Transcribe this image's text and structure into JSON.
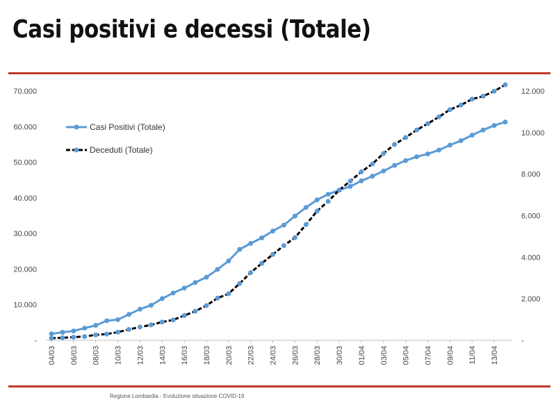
{
  "slide": {
    "title": "Casi positivi e decessi (Totale)",
    "footer": "Regione Lombardia - Evoluzione situazione COVID-19"
  },
  "colors": {
    "accent_rule": "#c0392b",
    "series_positivi": "#5b9bd5",
    "series_deceduti_line": "#000000",
    "series_deceduti_marker": "#5b9bd5"
  },
  "chart_data": {
    "type": "line",
    "title": "",
    "grid": false,
    "legend_position": "top-left",
    "left_axis": {
      "range": [
        0,
        70000
      ],
      "ticks": [
        "-",
        "10.000",
        "20.000",
        "30.000",
        "40.000",
        "50.000",
        "60.000",
        "70.000"
      ]
    },
    "right_axis": {
      "range": [
        0,
        12000
      ],
      "ticks": [
        "-",
        "2.000",
        "4.000",
        "6.000",
        "8.000",
        "10.000",
        "12.000"
      ]
    },
    "x_tick_labels": [
      "04/03",
      "06/03",
      "08/03",
      "10/03",
      "12/03",
      "14/03",
      "16/03",
      "18/03",
      "20/03",
      "22/03",
      "24/03",
      "26/03",
      "28/03",
      "30/03",
      "01/04",
      "03/04",
      "05/04",
      "07/04",
      "09/04",
      "11/04",
      "13/04"
    ],
    "categories": [
      "04/03",
      "05/03",
      "06/03",
      "07/03",
      "08/03",
      "09/03",
      "10/03",
      "11/03",
      "12/03",
      "13/03",
      "14/03",
      "15/03",
      "16/03",
      "17/03",
      "18/03",
      "19/03",
      "20/03",
      "21/03",
      "22/03",
      "23/03",
      "24/03",
      "25/03",
      "26/03",
      "27/03",
      "28/03",
      "29/03",
      "30/03",
      "31/03",
      "01/04",
      "02/04",
      "03/04",
      "04/04",
      "05/04",
      "06/04",
      "07/04",
      "08/04",
      "09/04",
      "10/04",
      "11/04",
      "12/04",
      "13/04",
      "14/04"
    ],
    "series": [
      {
        "name": "Casi Positivi (Totale)",
        "axis": "left",
        "values": [
          1820,
          2250,
          2610,
          3420,
          4190,
          5470,
          5790,
          7280,
          8730,
          9820,
          11690,
          13270,
          14650,
          16220,
          17710,
          19880,
          22260,
          25520,
          27210,
          28760,
          30700,
          32350,
          34890,
          37300,
          39420,
          41010,
          42160,
          43210,
          44770,
          46070,
          47520,
          49120,
          50450,
          51530,
          52330,
          53410,
          54800,
          56050,
          57590,
          59050,
          60310,
          61290
        ]
      },
      {
        "name": "Deceduti (Totale)",
        "axis": "right",
        "values": [
          100,
          120,
          150,
          180,
          260,
          300,
          390,
          520,
          640,
          740,
          880,
          980,
          1190,
          1400,
          1670,
          2030,
          2240,
          2730,
          3260,
          3700,
          4130,
          4560,
          4940,
          5570,
          6220,
          6690,
          7230,
          7660,
          8110,
          8490,
          8990,
          9430,
          9760,
          10120,
          10430,
          10750,
          11100,
          11320,
          11610,
          11750,
          11990,
          12300
        ]
      }
    ]
  }
}
